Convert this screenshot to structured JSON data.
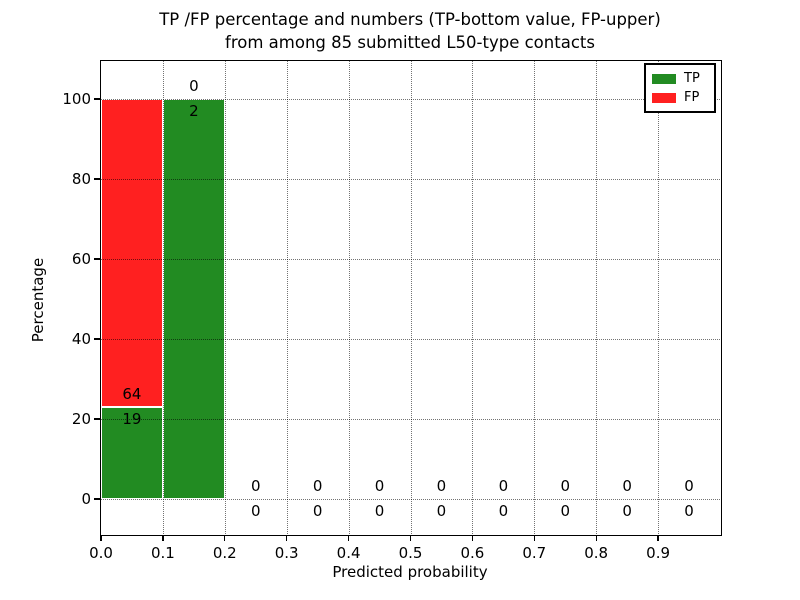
{
  "title": {
    "line1": "TP /FP percentage and numbers (TP-bottom value, FP-upper)",
    "line2": "from among 85 submitted L50-type contacts"
  },
  "axes": {
    "xlabel": "Predicted probability",
    "ylabel": "Percentage",
    "xticks": [
      "0.0",
      "0.1",
      "0.2",
      "0.3",
      "0.4",
      "0.5",
      "0.6",
      "0.7",
      "0.8",
      "0.9"
    ],
    "yticks": [
      "0",
      "20",
      "40",
      "60",
      "80",
      "100"
    ],
    "xlim": [
      0.0,
      1.0
    ],
    "ylim": [
      -9,
      110
    ],
    "grid": "dotted"
  },
  "legend": {
    "position": "upper-right",
    "entries": [
      {
        "label": "TP",
        "color": "#228b22"
      },
      {
        "label": "FP",
        "color": "#ff2020"
      }
    ]
  },
  "chart_data": {
    "type": "bar",
    "stacked": true,
    "title": "TP /FP percentage and numbers (TP-bottom value, FP-upper) from among 85 submitted L50-type contacts",
    "xlabel": "Predicted probability",
    "ylabel": "Percentage",
    "total_submitted": 85,
    "bin_edges": [
      0.0,
      0.1,
      0.2,
      0.3,
      0.4,
      0.5,
      0.6,
      0.7,
      0.8,
      0.9,
      1.0
    ],
    "bin_centers": [
      0.05,
      0.15,
      0.25,
      0.35,
      0.45,
      0.55,
      0.65,
      0.75,
      0.85,
      0.95
    ],
    "series": [
      {
        "name": "TP",
        "color": "#228b22",
        "counts": [
          19,
          2,
          0,
          0,
          0,
          0,
          0,
          0,
          0,
          0
        ],
        "percent": [
          22.9,
          100,
          0,
          0,
          0,
          0,
          0,
          0,
          0,
          0
        ]
      },
      {
        "name": "FP",
        "color": "#ff2020",
        "counts": [
          64,
          0,
          0,
          0,
          0,
          0,
          0,
          0,
          0,
          0
        ],
        "percent": [
          77.1,
          0,
          0,
          0,
          0,
          0,
          0,
          0,
          0,
          0
        ]
      }
    ]
  }
}
